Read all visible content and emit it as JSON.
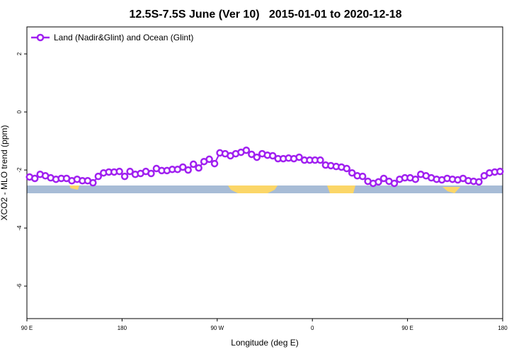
{
  "chart_data": {
    "type": "line",
    "title": "12.5S-7.5S June (Ver 10)   2015-01-01 to 2020-12-18",
    "x_label": "Longitude (deg E)",
    "y_label": "XCO2 - MLO trend (ppm)",
    "legend": "top-left",
    "xlim": [
      90,
      540
    ],
    "xticks": [
      {
        "value": 90,
        "label": "90 E"
      },
      180,
      {
        "value": 270,
        "label": "90 W"
      },
      {
        "value": 360,
        "label": "0"
      },
      {
        "value": 450,
        "label": "90 E"
      },
      {
        "value": 540,
        "label": "180"
      }
    ],
    "ylim": [
      -7.12,
      2.93
    ],
    "yticks": [
      -6,
      -4,
      -2,
      0,
      2
    ],
    "x": [
      92.5,
      97.5,
      102.5,
      107.5,
      112.5,
      117.5,
      122.5,
      127.5,
      132.5,
      137.5,
      142.5,
      147.5,
      152.5,
      157.5,
      162.5,
      167.5,
      172.5,
      177.5,
      182.5,
      187.5,
      192.5,
      197.5,
      202.5,
      207.5,
      212.5,
      217.5,
      222.5,
      227.5,
      232.5,
      237.5,
      242.5,
      247.5,
      252.5,
      257.5,
      262.5,
      267.5,
      272.5,
      277.5,
      282.5,
      287.5,
      292.5,
      297.5,
      302.5,
      307.5,
      312.5,
      317.5,
      322.5,
      327.5,
      332.5,
      337.5,
      342.5,
      347.5,
      352.5,
      357.5,
      362.5,
      367.5,
      372.5,
      377.5,
      382.5,
      387.5,
      392.5,
      397.5,
      402.5,
      407.5,
      412.5,
      417.5,
      422.5,
      427.5,
      432.5,
      437.5,
      442.5,
      447.5,
      452.5,
      457.5,
      462.5,
      467.5,
      472.5,
      477.5,
      482.5,
      487.5,
      492.5,
      497.5,
      502.5,
      507.5,
      512.5,
      517.5,
      522.5,
      527.5,
      532.5,
      537.5
    ],
    "series": [
      {
        "name": "Land (Nadir&Glint) and Ocean (Glint)",
        "color": "#a020f0",
        "values": [
          -2.24,
          -2.29,
          -2.15,
          -2.2,
          -2.27,
          -2.32,
          -2.29,
          -2.29,
          -2.37,
          -2.32,
          -2.37,
          -2.37,
          -2.44,
          -2.22,
          -2.1,
          -2.07,
          -2.07,
          -2.05,
          -2.22,
          -2.05,
          -2.15,
          -2.12,
          -2.05,
          -2.12,
          -1.95,
          -2.02,
          -2.02,
          -1.98,
          -1.98,
          -1.9,
          -2.0,
          -1.8,
          -1.93,
          -1.71,
          -1.63,
          -1.78,
          -1.41,
          -1.44,
          -1.51,
          -1.44,
          -1.39,
          -1.32,
          -1.46,
          -1.56,
          -1.44,
          -1.49,
          -1.51,
          -1.61,
          -1.61,
          -1.59,
          -1.61,
          -1.56,
          -1.66,
          -1.66,
          -1.66,
          -1.66,
          -1.83,
          -1.85,
          -1.88,
          -1.9,
          -1.95,
          -2.1,
          -2.2,
          -2.22,
          -2.39,
          -2.46,
          -2.41,
          -2.29,
          -2.39,
          -2.46,
          -2.32,
          -2.27,
          -2.27,
          -2.32,
          -2.15,
          -2.2,
          -2.27,
          -2.32,
          -2.34,
          -2.29,
          -2.32,
          -2.34,
          -2.29,
          -2.37,
          -2.39,
          -2.41,
          -2.2,
          -2.1,
          -2.07,
          -2.05
        ]
      }
    ]
  }
}
